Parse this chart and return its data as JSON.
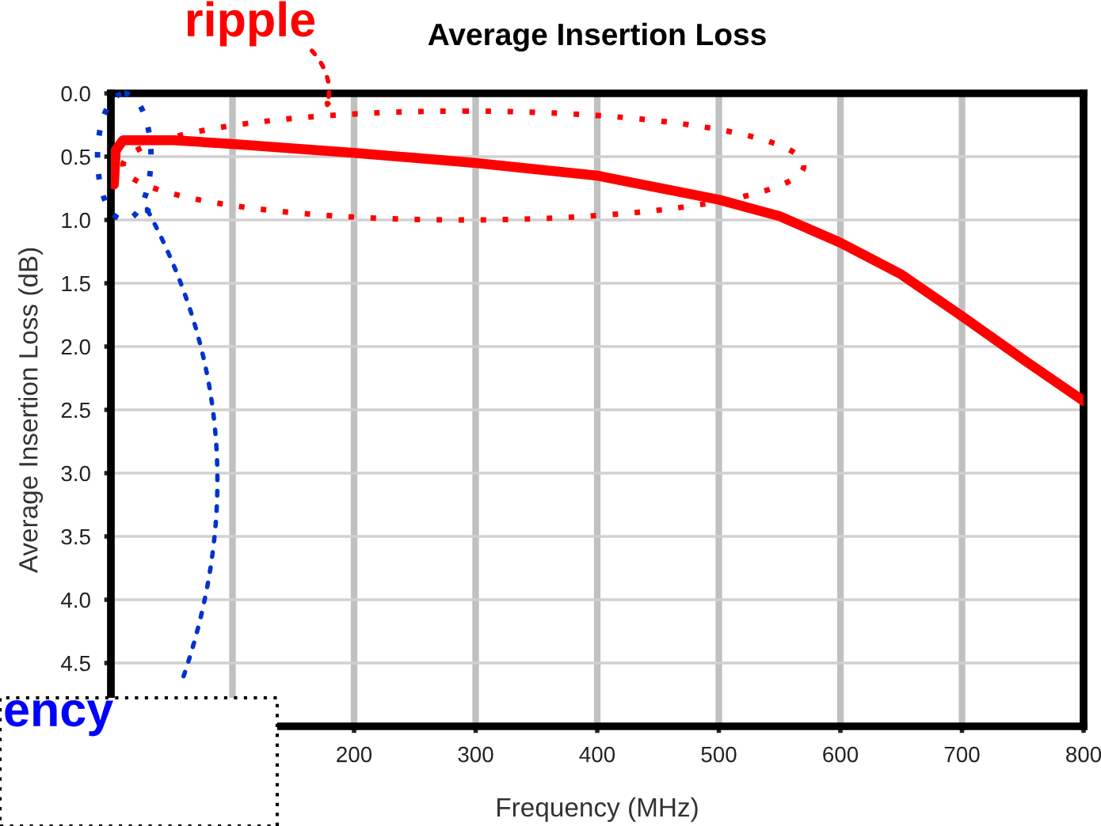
{
  "chart_data": {
    "type": "line",
    "title": "Average Insertion Loss",
    "xlabel": "Frequency (MHz)",
    "ylabel": "Average Insertion Loss (dB)",
    "annotations": [
      "ripple",
      "ency"
    ],
    "series": [
      {
        "color": "#ff0000",
        "x": [
          2.5,
          4,
          10,
          30,
          52,
          100,
          200,
          250,
          300,
          400,
          500,
          550,
          600,
          650,
          700,
          750,
          800
        ],
        "values": [
          0.72,
          0.45,
          0.37,
          0.37,
          0.37,
          0.4,
          0.47,
          0.51,
          0.55,
          0.65,
          0.84,
          0.97,
          1.18,
          1.43,
          1.76,
          2.1,
          2.43
        ]
      }
    ],
    "xlim": [
      0,
      800
    ],
    "xticks": [
      {
        "value": 100,
        "label": null
      },
      200,
      300,
      400,
      500,
      600,
      700,
      800
    ],
    "ylim": [
      5,
      0
    ],
    "yticks": [
      {
        "value": 0,
        "label": "0.0"
      },
      0.5,
      {
        "value": 1,
        "label": "1.0"
      },
      1.5,
      {
        "value": 2,
        "label": "2.0"
      },
      2.5,
      {
        "value": 3,
        "label": "3.0"
      },
      3.5,
      {
        "value": 4,
        "label": "4.0"
      },
      4.5
    ],
    "grid": true,
    "marker": "none",
    "line_style": "solid"
  }
}
